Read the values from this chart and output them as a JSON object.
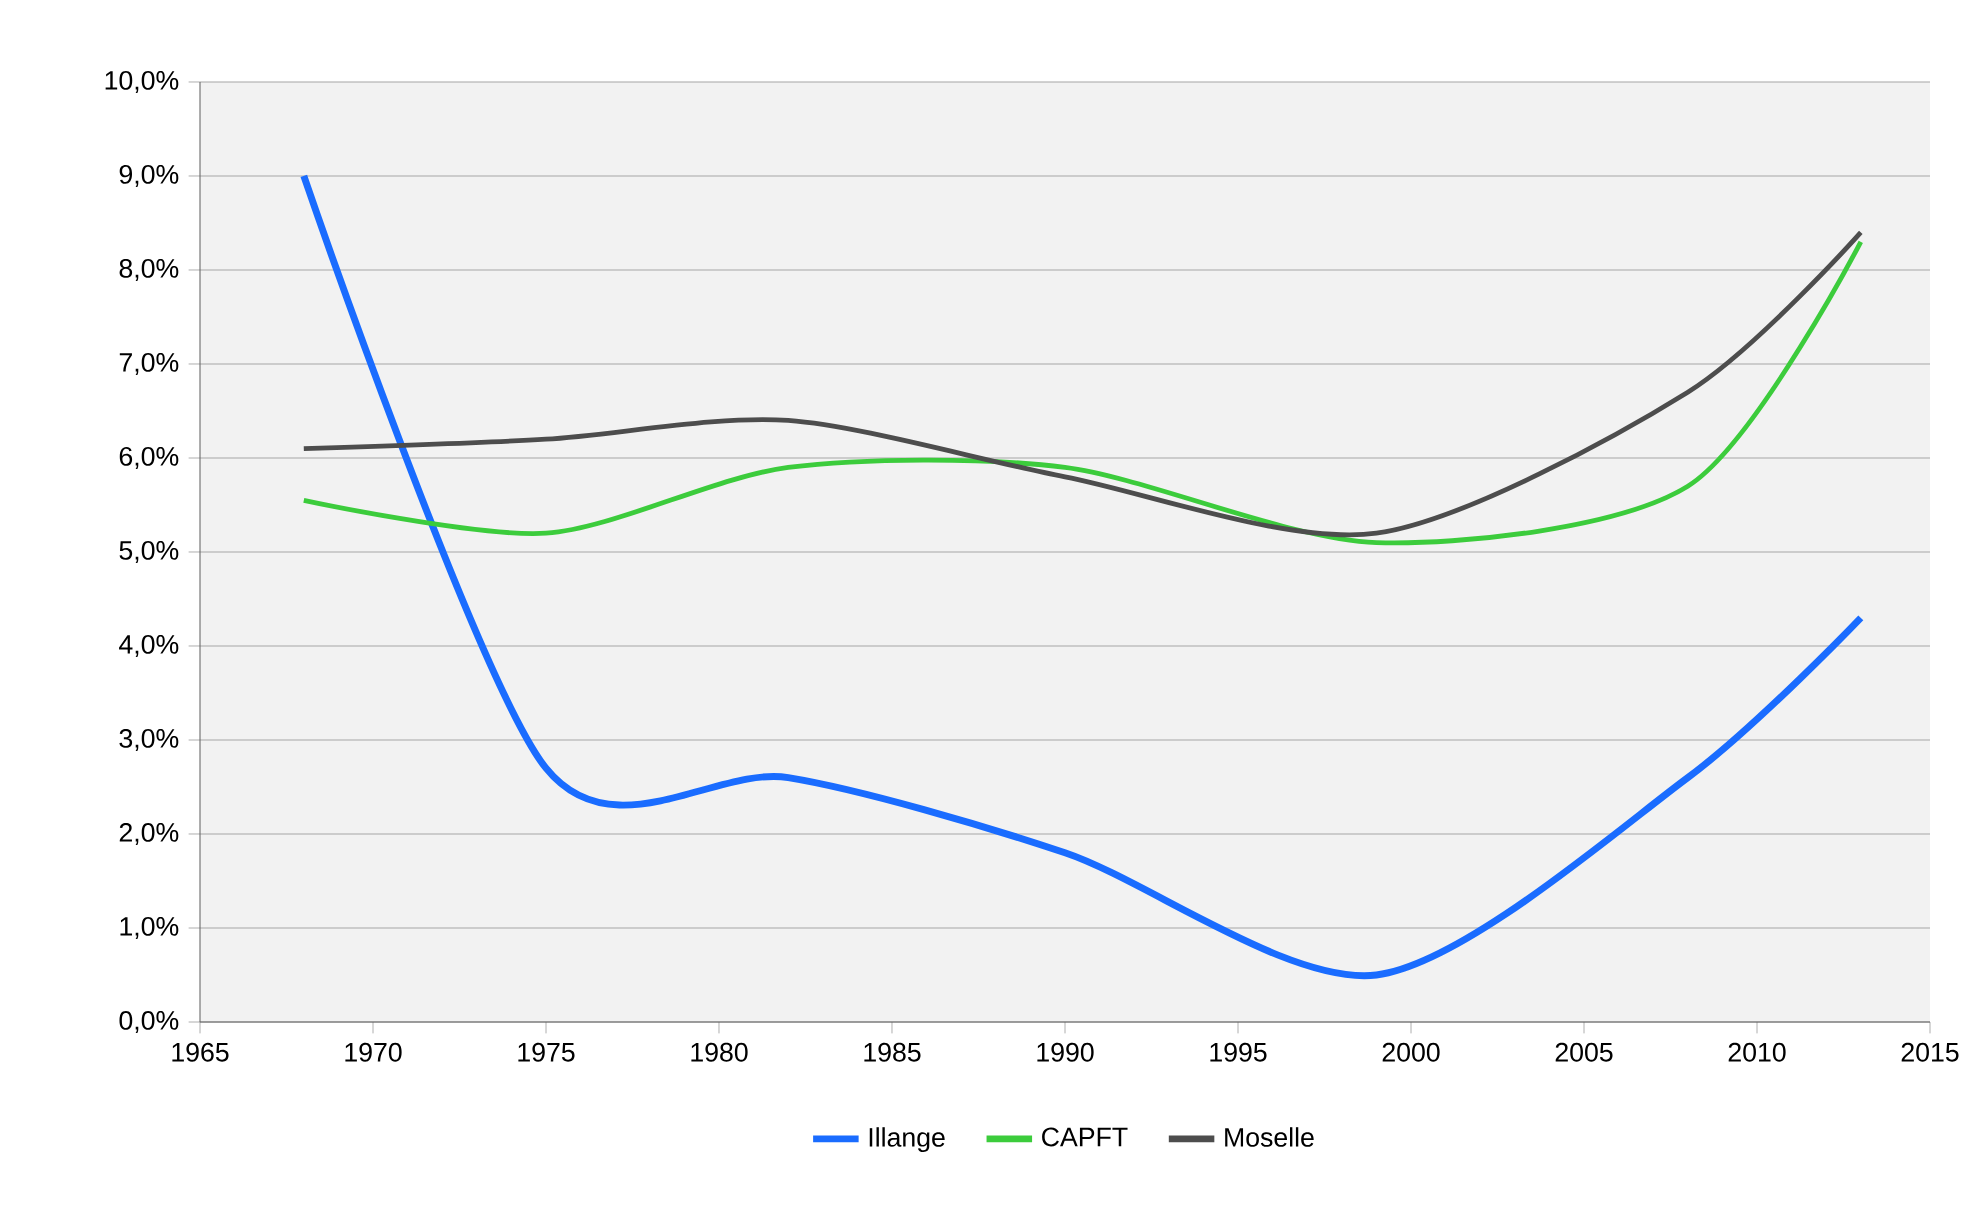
{
  "chart_data": {
    "type": "line",
    "x": [
      1968,
      1975,
      1982,
      1990,
      1999,
      2008,
      2013
    ],
    "series": [
      {
        "name": "Illange",
        "color": "#1a6cff",
        "values": [
          9.0,
          2.7,
          2.6,
          1.8,
          0.5,
          2.6,
          4.3
        ]
      },
      {
        "name": "CAPFT",
        "color": "#3ccc3c",
        "values": [
          5.55,
          5.2,
          5.9,
          5.9,
          5.1,
          5.7,
          8.3
        ]
      },
      {
        "name": "Moselle",
        "color": "#4d4d4d",
        "values": [
          6.1,
          6.2,
          6.4,
          5.8,
          5.2,
          6.7,
          8.4
        ]
      }
    ],
    "xlim": [
      1965,
      2015
    ],
    "xticks": [
      1965,
      1970,
      1975,
      1980,
      1985,
      1990,
      1995,
      2000,
      2005,
      2010,
      2015
    ],
    "ylim": [
      0,
      10
    ],
    "yticks": [
      {
        "value": 0,
        "label": "0,0%"
      },
      {
        "value": 1,
        "label": "1,0%"
      },
      {
        "value": 2,
        "label": "2,0%"
      },
      {
        "value": 3,
        "label": "3,0%"
      },
      {
        "value": 4,
        "label": "4,0%"
      },
      {
        "value": 5,
        "label": "5,0%"
      },
      {
        "value": 6,
        "label": "6,0%"
      },
      {
        "value": 7,
        "label": "7,0%"
      },
      {
        "value": 8,
        "label": "8,0%"
      },
      {
        "value": 9,
        "label": "9,0%"
      },
      {
        "value": 10,
        "label": "10,0%"
      }
    ],
    "grid": "y",
    "legend": "bottom",
    "line_style": "solid",
    "marker": "none"
  }
}
